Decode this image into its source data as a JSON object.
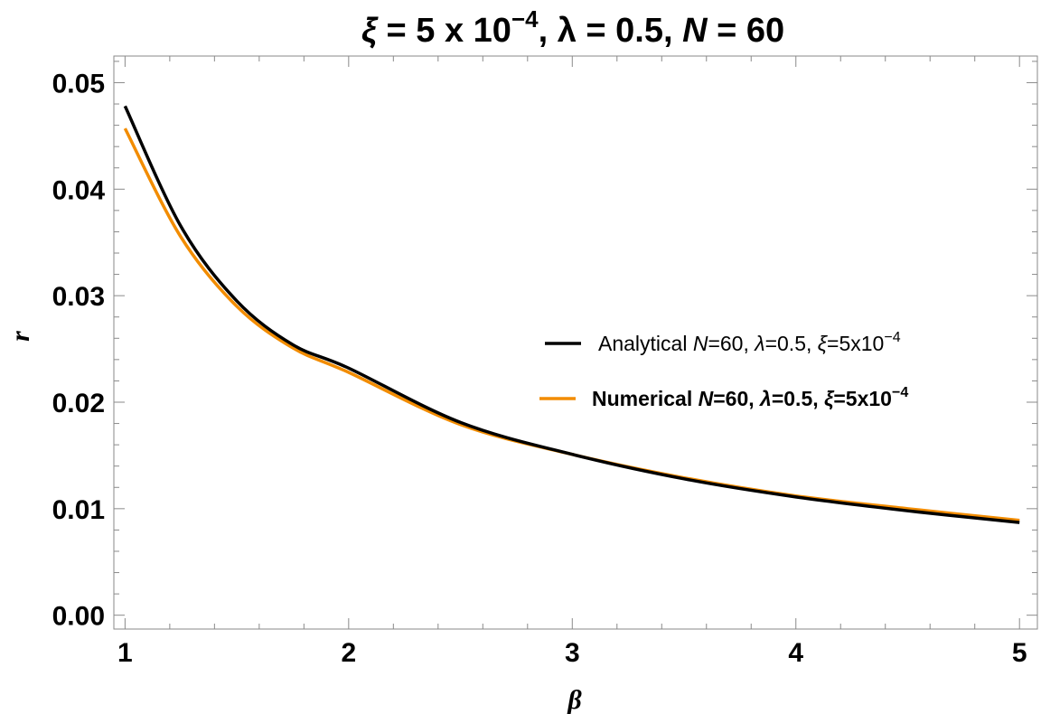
{
  "chart_data": {
    "type": "line",
    "title": {
      "xi_symbol": "ξ",
      "xi_value_prefix": " = 5 x 10",
      "xi_exponent": "−4",
      "lambda_part": ", λ = 0.5, ",
      "n_symbol": "N",
      "n_value": " = 60"
    },
    "xlabel": "β",
    "ylabel": "r",
    "xlim": [
      0.95,
      5.08
    ],
    "ylim": [
      -0.0013,
      0.0525
    ],
    "x_ticks": [
      1,
      2,
      3,
      4,
      5
    ],
    "x_tick_labels": [
      "1",
      "2",
      "3",
      "4",
      "5"
    ],
    "y_ticks": [
      0,
      0.01,
      0.02,
      0.03,
      0.04,
      0.05
    ],
    "y_tick_labels": [
      "0.00",
      "0.01",
      "0.02",
      "0.03",
      "0.04",
      "0.05"
    ],
    "grid": false,
    "legend_position": "right",
    "series": [
      {
        "name_prefix": "Analytical ",
        "name_n": "N",
        "name_mid": "=60, ",
        "name_lambda": "λ",
        "name_mid2": "=0.5, ",
        "name_xi": "ξ",
        "name_suffix": "=5x10",
        "name_exp": "−4",
        "color": "#000000",
        "x": [
          1.0,
          1.25,
          1.5,
          1.75,
          2.0,
          2.5,
          3.0,
          3.5,
          4.0,
          4.5,
          5.0
        ],
        "values": [
          0.0478,
          0.0365,
          0.0295,
          0.0254,
          0.0232,
          0.0181,
          0.0151,
          0.0128,
          0.0111,
          0.0098,
          0.0087
        ]
      },
      {
        "name_prefix": "Numerical ",
        "name_n": "N",
        "name_mid": "=60, ",
        "name_lambda": "λ",
        "name_mid2": "=0.5, ",
        "name_xi": "ξ",
        "name_suffix": "=5x10",
        "name_exp": "−4",
        "color": "#f28c00",
        "x": [
          1.0,
          1.25,
          1.5,
          1.75,
          2.0,
          2.5,
          3.0,
          3.5,
          4.0,
          4.5,
          5.0
        ],
        "values": [
          0.0457,
          0.0355,
          0.029,
          0.0251,
          0.0228,
          0.0179,
          0.0151,
          0.0129,
          0.0112,
          0.01,
          0.0089
        ]
      }
    ]
  }
}
